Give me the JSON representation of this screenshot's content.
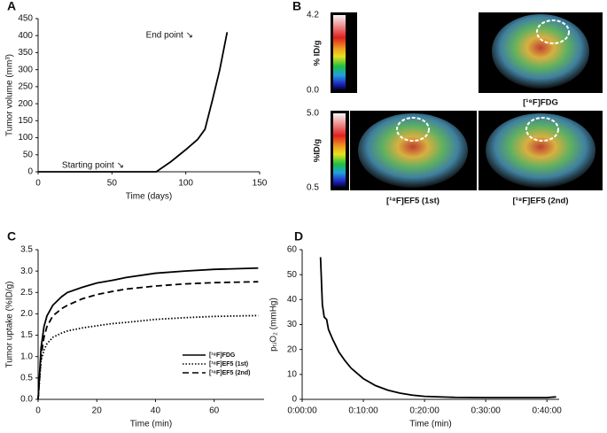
{
  "chart_data": [
    {
      "type": "line",
      "panel": "A",
      "xlabel": "Time (days)",
      "ylabel": "Tumor volume (mm³)",
      "x": [
        0,
        80,
        90,
        100,
        108,
        113,
        118,
        123,
        128
      ],
      "series": [
        {
          "name": null,
          "color": "#000000",
          "style": "solid",
          "values": [
            0,
            0,
            30,
            65,
            95,
            125,
            210,
            300,
            410
          ]
        }
      ],
      "xlim": [
        0,
        150
      ],
      "xticks": [
        0,
        50,
        100,
        150
      ],
      "ylim": [
        0,
        450
      ],
      "yticks": [
        0,
        50,
        100,
        150,
        200,
        250,
        300,
        350,
        400,
        450
      ],
      "annotations": [
        "End point ↘",
        "Starting point ↘"
      ]
    },
    {
      "type": "line",
      "panel": "C",
      "xlabel": "Time (min)",
      "ylabel": "Tumor uptake (%ID/g)",
      "x": [
        0,
        1,
        2,
        3,
        5,
        8,
        10,
        15,
        20,
        25,
        30,
        40,
        50,
        60,
        75
      ],
      "series": [
        {
          "name": "[¹⁸F]FDG",
          "color": "#000000",
          "style": "solid",
          "values": [
            0,
            1.2,
            1.7,
            1.95,
            2.2,
            2.4,
            2.5,
            2.62,
            2.72,
            2.78,
            2.85,
            2.95,
            3.0,
            3.04,
            3.07
          ]
        },
        {
          "name": "[¹⁸F]EF5 (1st)",
          "color": "#000000",
          "style": "dotted",
          "values": [
            0,
            0.9,
            1.15,
            1.3,
            1.45,
            1.55,
            1.6,
            1.67,
            1.72,
            1.77,
            1.8,
            1.87,
            1.91,
            1.94,
            1.96
          ]
        },
        {
          "name": "[¹⁸F]EF5 (2nd)",
          "color": "#000000",
          "style": "dashed",
          "values": [
            0,
            1.0,
            1.45,
            1.7,
            1.95,
            2.12,
            2.2,
            2.35,
            2.45,
            2.52,
            2.58,
            2.65,
            2.7,
            2.73,
            2.75
          ]
        }
      ],
      "xlim": [
        0,
        77
      ],
      "xticks": [
        0,
        20,
        40,
        60
      ],
      "ylim": [
        0,
        3.5
      ],
      "yticks": [
        {
          "value": 0,
          "label": "0.0"
        },
        0.5,
        {
          "value": 1,
          "label": "1.0"
        },
        1.5,
        {
          "value": 2,
          "label": "2.0"
        },
        2.5,
        {
          "value": 3,
          "label": "3.0"
        },
        3.5
      ]
    },
    {
      "type": "line",
      "panel": "D",
      "xlabel": "Time (min)",
      "ylabel": "pₜᵢO₂ (mmHg)",
      "x": [
        3,
        3.3,
        3.6,
        4,
        4.3,
        5,
        6,
        7,
        8,
        10,
        12,
        14,
        16,
        18,
        20,
        25,
        30,
        35,
        40,
        41.5
      ],
      "series": [
        {
          "name": null,
          "color": "#000000",
          "style": "solid",
          "values": [
            57,
            38,
            33,
            32,
            28,
            24,
            19,
            15.5,
            12.5,
            8.3,
            5.5,
            3.7,
            2.5,
            1.7,
            1.2,
            0.8,
            0.7,
            0.7,
            0.7,
            1.0
          ]
        }
      ],
      "xlim": [
        0,
        42
      ],
      "xticks": [
        {
          "value": 0,
          "label": "0:00:00"
        },
        {
          "value": 10,
          "label": "0:10:00"
        },
        {
          "value": 20,
          "label": "0:20:00"
        },
        {
          "value": 30,
          "label": "0:30:00"
        },
        {
          "value": 40,
          "label": "0:40:00"
        }
      ],
      "ylim": [
        0,
        60
      ],
      "yticks": [
        0,
        10,
        20,
        30,
        40,
        50,
        60
      ]
    }
  ],
  "panel_b": {
    "panel": "B",
    "top_scale": {
      "max": "4.2",
      "unit": "% ID/g",
      "min": "0.0"
    },
    "bottom_scale": {
      "max": "5.0",
      "unit": "%ID/g",
      "min": "0.5"
    },
    "labels": [
      "[¹⁸F]FDG",
      "[¹⁸F]EF5 (1st)",
      "[¹⁸F]EF5 (2nd)"
    ]
  }
}
